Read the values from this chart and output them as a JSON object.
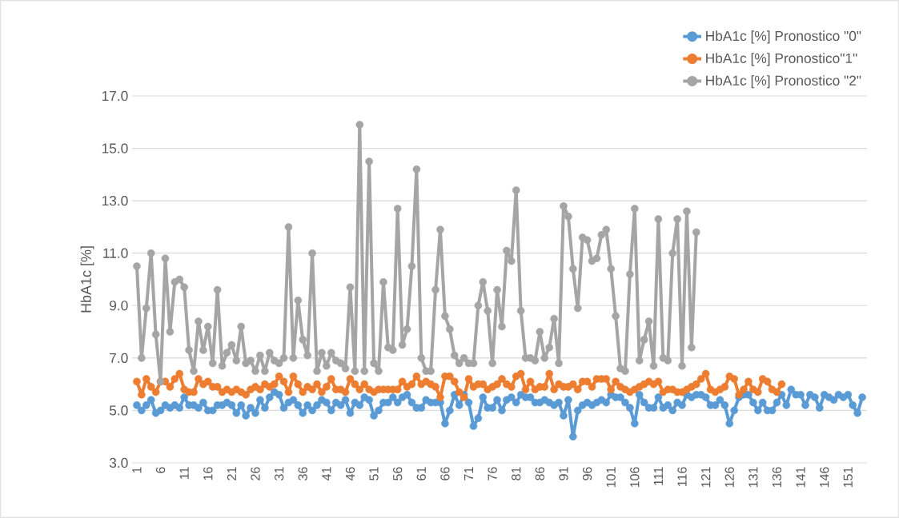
{
  "chart_data": {
    "type": "line",
    "ylabel": "HbA1c [%]",
    "categories": [
      "1",
      null,
      null,
      null,
      null,
      "6",
      null,
      null,
      null,
      null,
      "11",
      null,
      null,
      null,
      null,
      "16",
      null,
      null,
      null,
      null,
      "21",
      null,
      null,
      null,
      null,
      "26",
      null,
      null,
      null,
      null,
      "31",
      null,
      null,
      null,
      null,
      "36",
      null,
      null,
      null,
      null,
      "41",
      null,
      null,
      null,
      null,
      "46",
      null,
      null,
      null,
      null,
      "51",
      null,
      null,
      null,
      null,
      "56",
      null,
      null,
      null,
      null,
      "61",
      null,
      null,
      null,
      null,
      "66",
      null,
      null,
      null,
      null,
      "71",
      null,
      null,
      null,
      null,
      "76",
      null,
      null,
      null,
      null,
      "81",
      null,
      null,
      null,
      null,
      "86",
      null,
      null,
      null,
      null,
      "91",
      null,
      null,
      null,
      null,
      "96",
      null,
      null,
      null,
      null,
      "101",
      null,
      null,
      null,
      null,
      "106",
      null,
      null,
      null,
      null,
      "111",
      null,
      null,
      null,
      null,
      "116",
      null,
      null,
      null,
      null,
      "121",
      null,
      null,
      null,
      null,
      "126",
      null,
      null,
      null,
      null,
      "131",
      null,
      null,
      null,
      null,
      "136",
      null,
      null,
      null,
      null,
      "141",
      null,
      null,
      null,
      null,
      "146",
      null,
      null,
      null,
      null,
      "151",
      null,
      null,
      null
    ],
    "series": [
      {
        "name": "HbA1c [%] Pronostico \"0\"",
        "color": "#5b9bd5",
        "values": [
          5.2,
          5.0,
          5.2,
          5.4,
          4.9,
          5.0,
          5.2,
          5.1,
          5.2,
          5.1,
          5.5,
          5.2,
          5.2,
          5.1,
          5.3,
          5.0,
          5.0,
          5.2,
          5.2,
          5.3,
          5.2,
          4.9,
          5.2,
          4.8,
          5.1,
          4.9,
          5.4,
          5.1,
          5.5,
          5.7,
          5.6,
          5.1,
          5.3,
          5.4,
          5.2,
          4.9,
          5.2,
          5.0,
          5.2,
          5.4,
          5.3,
          5.0,
          5.3,
          5.2,
          5.4,
          4.9,
          5.3,
          5.2,
          5.5,
          5.4,
          4.8,
          5.0,
          5.3,
          5.3,
          5.5,
          5.3,
          5.5,
          5.6,
          5.3,
          5.1,
          5.1,
          5.4,
          5.3,
          5.3,
          5.3,
          4.5,
          5.0,
          5.6,
          5.2,
          5.6,
          5.3,
          4.4,
          4.7,
          5.5,
          5.1,
          5.1,
          5.4,
          5.0,
          5.4,
          5.5,
          5.3,
          5.6,
          5.5,
          5.5,
          5.3,
          5.3,
          5.4,
          5.3,
          5.2,
          5.3,
          4.8,
          5.4,
          4.0,
          5.0,
          5.2,
          5.3,
          5.2,
          5.3,
          5.4,
          5.3,
          5.6,
          5.5,
          5.5,
          5.3,
          5.1,
          4.5,
          5.6,
          5.3,
          5.1,
          5.1,
          5.5,
          5.1,
          5.2,
          5.0,
          5.3,
          5.2,
          5.6,
          5.5,
          5.6,
          5.6,
          5.5,
          5.2,
          5.2,
          5.4,
          5.2,
          4.5,
          5.0,
          5.5,
          5.6,
          5.6,
          5.3,
          5.0,
          5.3,
          5.0,
          5.0,
          5.3,
          5.6,
          5.2,
          5.8,
          5.6,
          5.6,
          5.2,
          5.6,
          5.5,
          5.1,
          5.6,
          5.5,
          5.4,
          5.6,
          5.5,
          5.6,
          5.2,
          4.9,
          5.5
        ]
      },
      {
        "name": "HbA1c [%] Pronostico\"1\"",
        "color": "#ed7d31",
        "values": [
          6.1,
          5.6,
          6.2,
          5.9,
          5.7,
          6.1,
          6.1,
          5.9,
          6.2,
          6.4,
          5.8,
          5.7,
          5.7,
          6.2,
          6.0,
          6.1,
          5.9,
          5.9,
          5.7,
          5.8,
          5.7,
          5.8,
          5.7,
          5.6,
          5.8,
          5.9,
          5.8,
          6.0,
          5.9,
          6.0,
          6.3,
          6.1,
          5.7,
          6.3,
          6.0,
          5.7,
          5.9,
          5.8,
          6.0,
          5.7,
          5.9,
          6.2,
          5.8,
          5.8,
          5.7,
          6.2,
          6.0,
          5.8,
          6.0,
          5.8,
          5.7,
          5.8,
          5.8,
          5.8,
          5.8,
          5.8,
          6.1,
          5.9,
          6.0,
          6.3,
          6.0,
          6.1,
          6.0,
          5.9,
          5.5,
          6.3,
          6.3,
          6.1,
          5.7,
          5.5,
          6.2,
          5.9,
          6.0,
          6.0,
          5.8,
          5.9,
          6.0,
          6.2,
          6.0,
          5.9,
          6.3,
          6.4,
          5.8,
          6.1,
          5.8,
          5.9,
          5.9,
          6.4,
          5.8,
          6.0,
          5.9,
          5.9,
          6.0,
          5.8,
          6.1,
          6.1,
          5.9,
          6.2,
          6.2,
          6.2,
          5.8,
          6.1,
          5.9,
          5.8,
          5.7,
          5.8,
          5.9,
          6.0,
          6.1,
          6.0,
          6.1,
          5.7,
          5.8,
          5.8,
          5.7,
          5.7,
          5.8,
          5.9,
          6.0,
          6.2,
          6.4,
          5.8,
          5.7,
          5.8,
          5.9,
          6.3,
          6.2,
          5.6,
          5.8,
          6.1,
          5.8,
          5.7,
          6.2,
          6.1,
          5.8,
          5.7,
          6.0,
          null,
          null,
          null,
          null,
          null,
          null,
          null,
          null,
          null,
          null,
          null,
          null,
          null,
          null,
          null,
          null,
          null
        ]
      },
      {
        "name": "HbA1c [%] Pronostico \"2\"",
        "color": "#a5a5a5",
        "values": [
          10.5,
          7.0,
          8.9,
          11.0,
          7.9,
          6.1,
          10.8,
          8.0,
          9.9,
          10.0,
          9.7,
          7.3,
          6.5,
          8.4,
          7.3,
          8.2,
          6.8,
          9.6,
          6.7,
          7.2,
          7.5,
          6.9,
          8.2,
          6.8,
          6.9,
          6.5,
          7.1,
          6.5,
          7.2,
          6.9,
          6.8,
          7.0,
          12.0,
          7.0,
          9.2,
          7.7,
          7.1,
          11.0,
          6.5,
          7.2,
          6.7,
          7.2,
          6.9,
          6.8,
          6.6,
          9.7,
          6.5,
          15.9,
          6.5,
          14.5,
          6.8,
          6.5,
          9.9,
          7.4,
          7.3,
          12.7,
          7.5,
          8.1,
          10.5,
          14.2,
          7.0,
          6.5,
          6.5,
          9.6,
          11.9,
          8.6,
          8.1,
          7.1,
          6.8,
          7.0,
          6.8,
          6.8,
          9.0,
          9.9,
          8.8,
          6.8,
          9.6,
          8.2,
          11.1,
          10.7,
          13.4,
          8.8,
          7.0,
          7.0,
          6.9,
          8.0,
          7.0,
          7.4,
          8.5,
          6.8,
          12.8,
          12.4,
          10.4,
          8.9,
          11.6,
          11.5,
          10.7,
          10.8,
          11.7,
          11.9,
          10.4,
          8.6,
          6.6,
          6.5,
          10.2,
          12.7,
          6.9,
          7.7,
          8.4,
          6.7,
          12.3,
          7.0,
          6.9,
          11.0,
          12.3,
          6.7,
          12.6,
          7.4,
          11.8,
          null,
          null,
          null,
          null,
          null,
          null,
          null,
          null,
          null,
          null,
          null,
          null,
          null,
          null,
          null,
          null,
          null,
          null,
          null,
          null,
          null,
          null,
          null,
          null,
          null,
          null,
          null,
          null,
          null,
          null,
          null,
          null,
          null,
          null,
          null
        ]
      }
    ],
    "ylim": [
      3,
      17
    ],
    "yticks": [
      {
        "value": 3,
        "label": "3.0"
      },
      {
        "value": 5,
        "label": "5.0"
      },
      {
        "value": 7,
        "label": "7.0"
      },
      {
        "value": 9,
        "label": "9.0"
      },
      {
        "value": 11,
        "label": "11.0"
      },
      {
        "value": 13,
        "label": "13.0"
      },
      {
        "value": 15,
        "label": "15.0"
      },
      {
        "value": 17,
        "label": "17.0"
      }
    ],
    "grid": "y",
    "legend": "top right",
    "marker": "circle",
    "line_style": "solid"
  }
}
